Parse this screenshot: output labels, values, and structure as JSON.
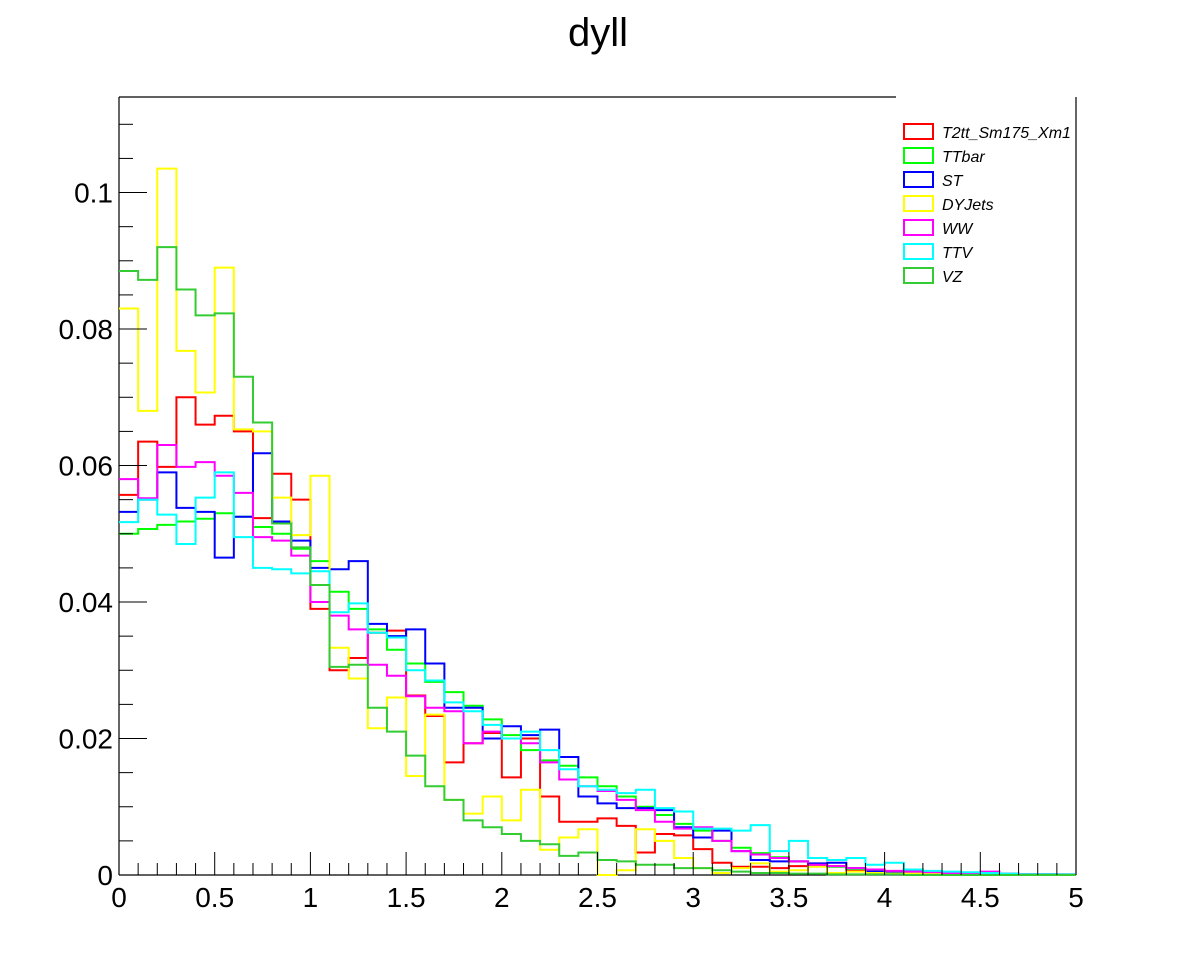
{
  "chart_data": {
    "type": "line",
    "style": "step-histogram",
    "title": "dyll",
    "xlabel": "",
    "ylabel": "",
    "xlim": [
      0,
      5
    ],
    "ylim": [
      0,
      0.114
    ],
    "x_tick_labels": [
      "0",
      "0.5",
      "1",
      "1.5",
      "2",
      "2.5",
      "3",
      "3.5",
      "4",
      "4.5",
      "5"
    ],
    "y_tick_labels": [
      "0",
      "0.02",
      "0.04",
      "0.06",
      "0.08",
      "0.1"
    ],
    "grid": false,
    "legend_position": "top-right",
    "bin_width": 0.1,
    "bin_edges_start": 0,
    "series": [
      {
        "name": "T2tt_Sm175_Xm1",
        "color": "#ff0000",
        "values": [
          0.0557,
          0.0635,
          0.0598,
          0.07,
          0.066,
          0.0673,
          0.065,
          0.0523,
          0.0588,
          0.055,
          0.039,
          0.03,
          0.0318,
          0.0355,
          0.0358,
          0.0263,
          0.0233,
          0.0165,
          0.0193,
          0.0208,
          0.0143,
          0.02,
          0.0115,
          0.0078,
          0.0078,
          0.0083,
          0.0072,
          0.0033,
          0.006,
          0.0058,
          0.0038,
          0.0018,
          0.0012,
          0.0012,
          0.001,
          0.0013,
          0.0013,
          0.0013,
          0.0006,
          0.0005,
          0.0005,
          0.0008,
          0.0003,
          0.0004,
          0.0003,
          0.0002,
          0.0002,
          0.0001,
          0.0001,
          0.0001
        ]
      },
      {
        "name": "TTbar",
        "color": "#00ff00",
        "values": [
          0.05,
          0.0507,
          0.0513,
          0.0518,
          0.0522,
          0.053,
          0.0525,
          0.051,
          0.05,
          0.0478,
          0.046,
          0.0415,
          0.039,
          0.036,
          0.033,
          0.031,
          0.0283,
          0.0268,
          0.0248,
          0.0228,
          0.0205,
          0.0183,
          0.0168,
          0.016,
          0.0143,
          0.013,
          0.0115,
          0.01,
          0.0088,
          0.0075,
          0.0065,
          0.005,
          0.004,
          0.0032,
          0.0026,
          0.002,
          0.0016,
          0.0012,
          0.0009,
          0.0007,
          0.0005,
          0.0004,
          0.0003,
          0.0002,
          0.0002,
          0.0001,
          0.0001,
          0.0001,
          0.0001,
          0.0
        ]
      },
      {
        "name": "ST",
        "color": "#0000ff",
        "values": [
          0.0532,
          0.055,
          0.059,
          0.0538,
          0.0532,
          0.0465,
          0.0525,
          0.0618,
          0.0518,
          0.049,
          0.045,
          0.0448,
          0.046,
          0.0368,
          0.035,
          0.036,
          0.031,
          0.0245,
          0.0245,
          0.02,
          0.0218,
          0.0205,
          0.0213,
          0.0173,
          0.0115,
          0.0105,
          0.0098,
          0.0098,
          0.0095,
          0.007,
          0.0055,
          0.0065,
          0.0035,
          0.0022,
          0.002,
          0.002,
          0.0017,
          0.0018,
          0.001,
          0.0005,
          0.0005,
          0.0005,
          0.0005,
          0.0003,
          0.0002,
          0.0002,
          0.0001,
          0.0001,
          0.0001,
          0.0
        ]
      },
      {
        "name": "DYJets",
        "color": "#ffff00",
        "values": [
          0.083,
          0.068,
          0.1035,
          0.0768,
          0.0707,
          0.089,
          0.0653,
          0.065,
          0.0553,
          0.0498,
          0.0585,
          0.0333,
          0.0288,
          0.0215,
          0.026,
          0.0145,
          0.0235,
          0.011,
          0.009,
          0.0115,
          0.008,
          0.0125,
          0.0037,
          0.0055,
          0.0067,
          0.0,
          0.0007,
          0.0067,
          0.005,
          0.0025,
          0.001,
          0.0003,
          0.001,
          0.0017,
          0.0005,
          0.0007,
          0.0012,
          0.0003,
          0.0005,
          0.0003,
          0.0002,
          0.0002,
          0.0002,
          0.0,
          0.0003,
          0.0,
          0.0,
          0.0,
          0.0,
          0.0
        ]
      },
      {
        "name": "WW",
        "color": "#ff00ff",
        "values": [
          0.058,
          0.0552,
          0.063,
          0.0598,
          0.0605,
          0.0585,
          0.056,
          0.0495,
          0.049,
          0.0468,
          0.04,
          0.038,
          0.036,
          0.0308,
          0.0292,
          0.0262,
          0.0245,
          0.024,
          0.0193,
          0.021,
          0.02,
          0.0193,
          0.0165,
          0.014,
          0.013,
          0.0123,
          0.011,
          0.0095,
          0.0078,
          0.0068,
          0.007,
          0.005,
          0.0035,
          0.003,
          0.0025,
          0.002,
          0.0015,
          0.0013,
          0.001,
          0.0008,
          0.0006,
          0.0005,
          0.0004,
          0.0003,
          0.0002,
          0.0005,
          0.0002,
          0.0001,
          0.0001,
          0.0001
        ]
      },
      {
        "name": "TTV",
        "color": "#00ffff",
        "values": [
          0.0517,
          0.055,
          0.0528,
          0.0485,
          0.0553,
          0.059,
          0.0495,
          0.045,
          0.0448,
          0.0442,
          0.0445,
          0.0385,
          0.0398,
          0.0355,
          0.0348,
          0.03,
          0.0285,
          0.0253,
          0.024,
          0.022,
          0.02,
          0.021,
          0.0183,
          0.0155,
          0.013,
          0.0125,
          0.012,
          0.0125,
          0.0098,
          0.0093,
          0.0068,
          0.0068,
          0.0065,
          0.0073,
          0.0035,
          0.005,
          0.0025,
          0.0022,
          0.0025,
          0.0015,
          0.0018,
          0.0008,
          0.0006,
          0.0005,
          0.0004,
          0.0003,
          0.0002,
          0.0001,
          0.0001,
          0.0001
        ]
      },
      {
        "name": "VZ",
        "color": "#33cc33",
        "values": [
          0.0885,
          0.0872,
          0.092,
          0.0858,
          0.082,
          0.0823,
          0.073,
          0.0663,
          0.0515,
          0.048,
          0.0425,
          0.0305,
          0.0308,
          0.0245,
          0.021,
          0.0175,
          0.013,
          0.011,
          0.008,
          0.007,
          0.006,
          0.005,
          0.0045,
          0.0028,
          0.0033,
          0.0022,
          0.002,
          0.0015,
          0.0015,
          0.001,
          0.001,
          0.0007,
          0.0005,
          0.0003,
          0.0003,
          0.0002,
          0.0002,
          0.0001,
          0.0001,
          0.0001,
          0.0001,
          0.0,
          0.0,
          0.0,
          0.0,
          0.0,
          0.0,
          0.0,
          0.0,
          0.0
        ]
      }
    ]
  }
}
